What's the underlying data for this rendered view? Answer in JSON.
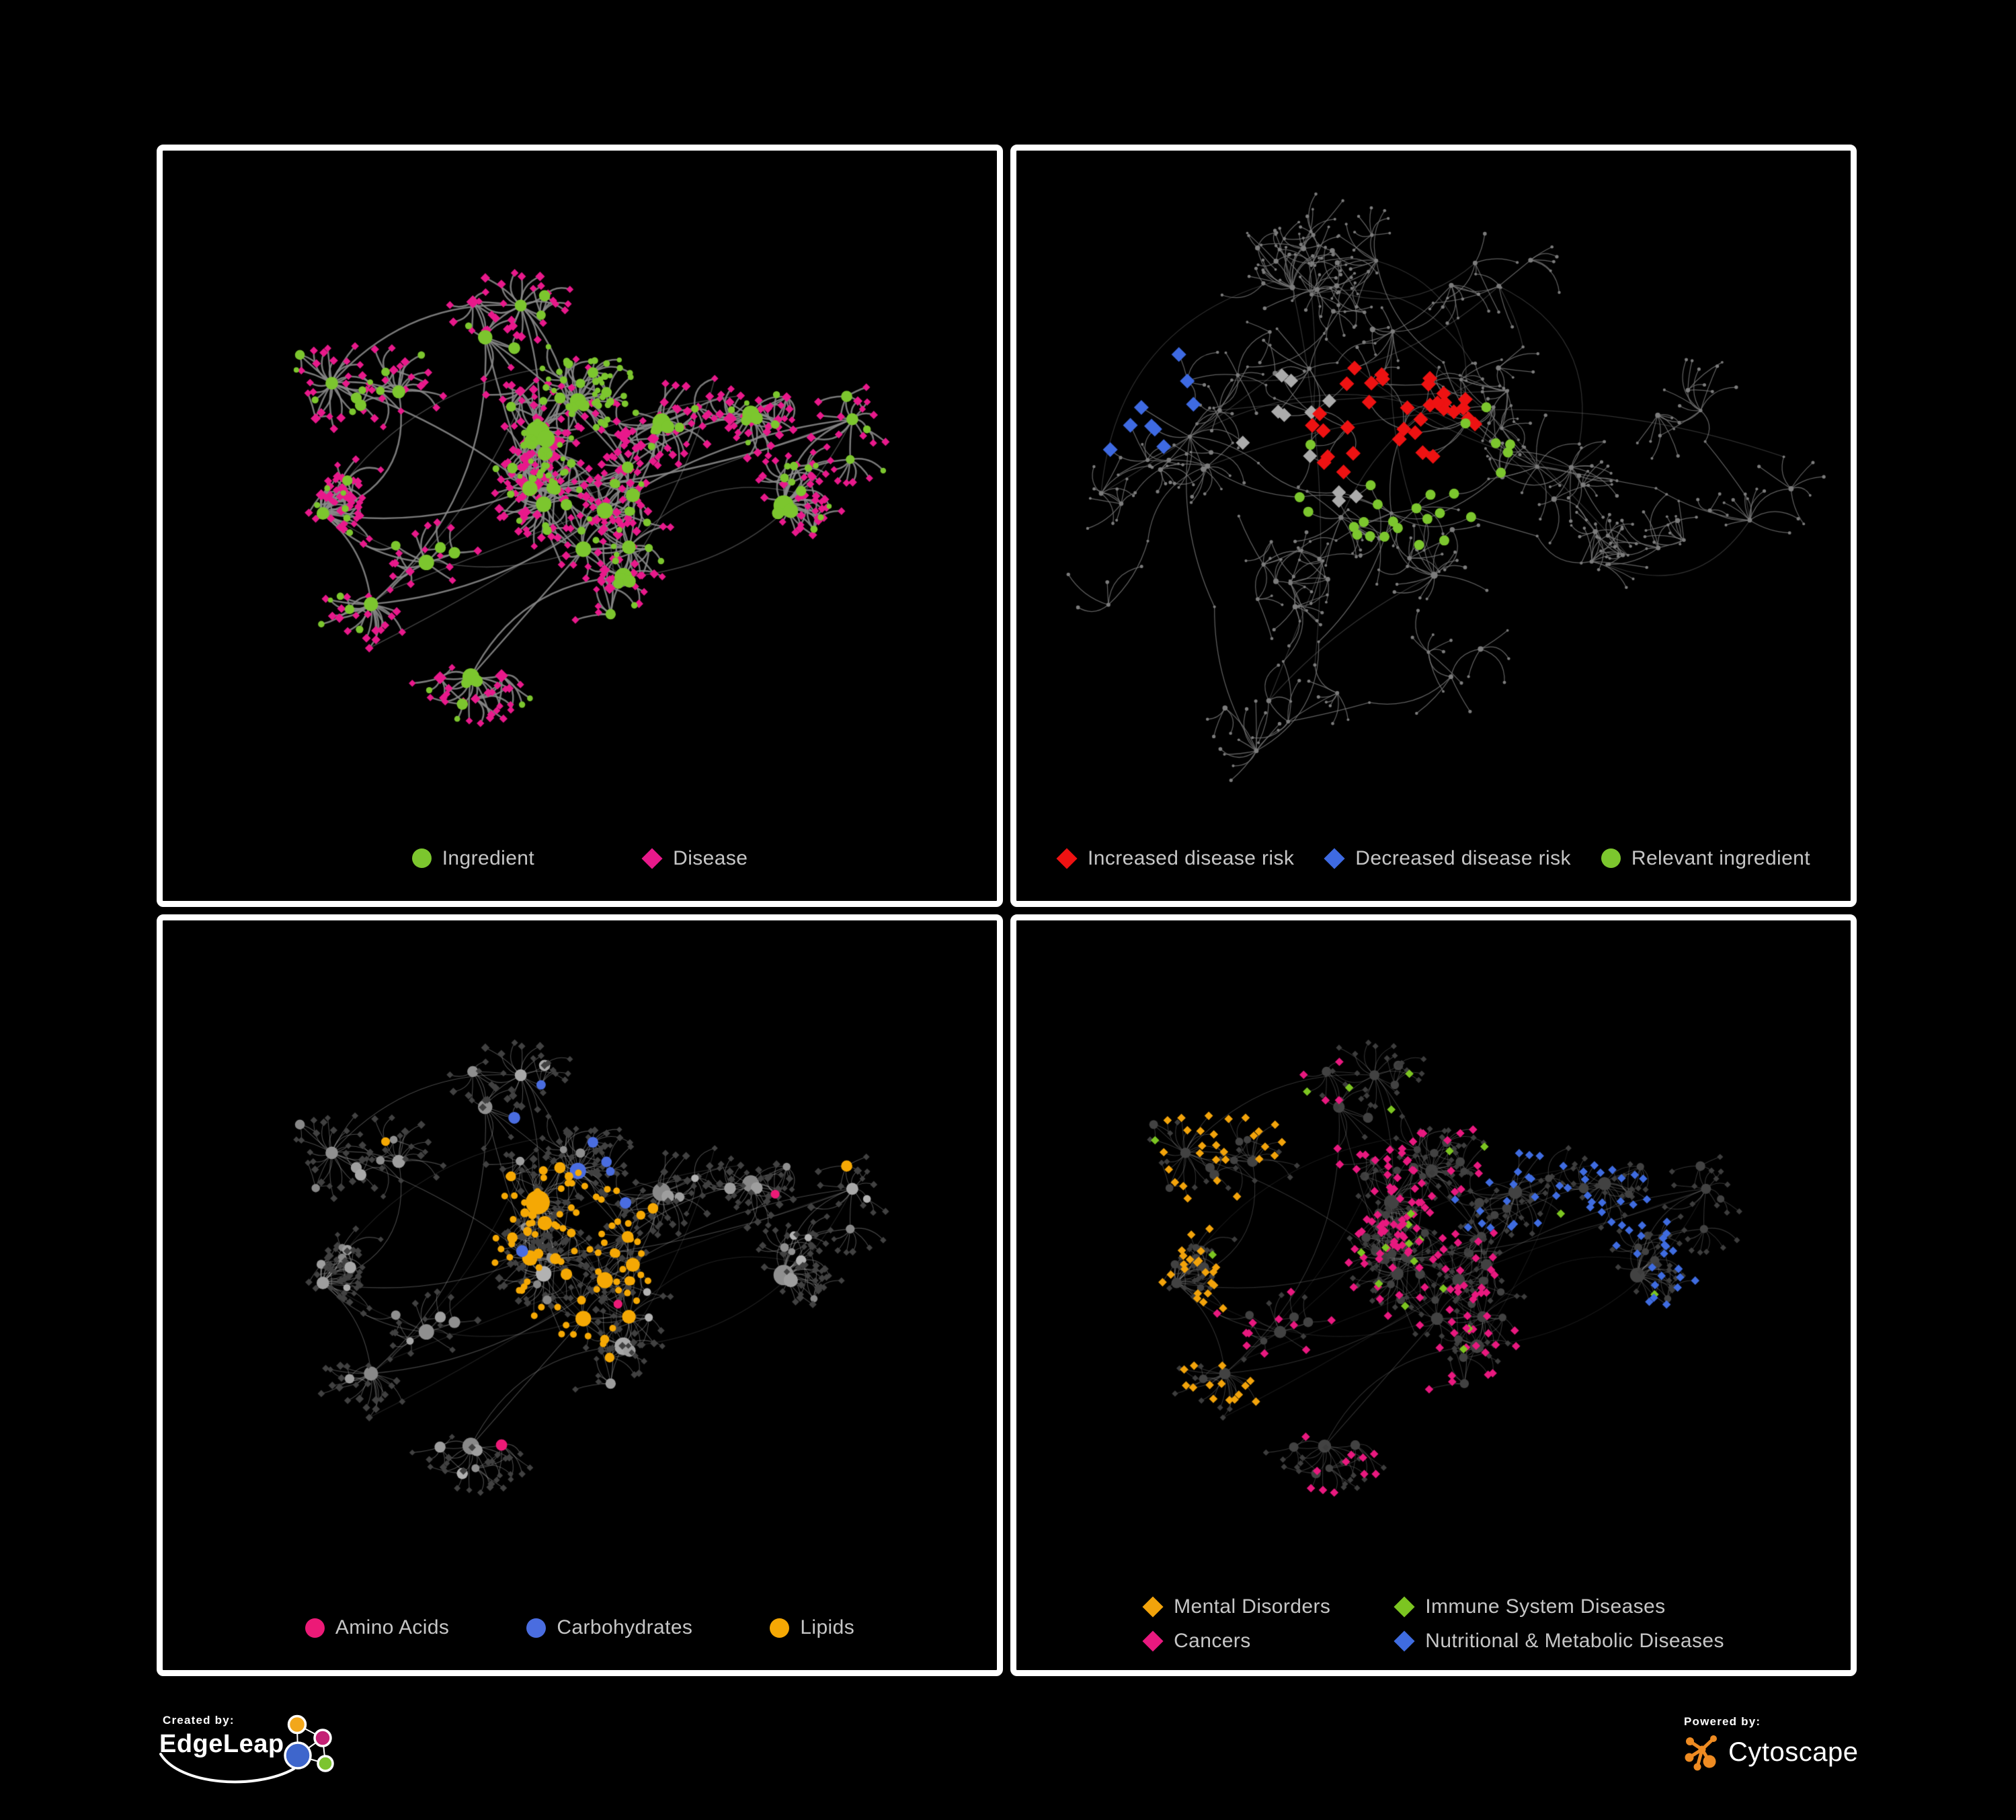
{
  "footer": {
    "created_by_label": "Created by:",
    "edgeleap_brand": "EdgeLeap",
    "powered_by_label": "Powered by:",
    "cytoscape_brand": "Cytoscape",
    "logo_colors": {
      "edgeleap_orange": "#F2A71B",
      "edgeleap_magenta": "#C42175",
      "edgeleap_blue": "#3E66CC",
      "edgeleap_green": "#7CC430",
      "edgeleap_stroke": "#FFFFFF",
      "cytoscape_orange": "#EE8B22"
    }
  },
  "palette": {
    "p1": {
      "edge": "#8A8A8A",
      "green": "#7CC62E",
      "pink": "#E8198B"
    },
    "p2": {
      "edge": "#777777",
      "node": "#7C7C7C",
      "red": "#EE1212",
      "blue": "#3E6AE2",
      "gray": "#ABABAB",
      "green": "#7CC62E"
    },
    "p3": {
      "edge": "#B5B5B5",
      "diamond": "#414141",
      "grays": [
        "#9E9E9E",
        "#8F8F8F",
        "#B2B2B2",
        "#A8A8A8",
        "#888888"
      ],
      "pink": "#EC1A77",
      "blue": "#4A6DE0",
      "orange": "#F5A804"
    },
    "p4": {
      "edge": "#A8A8A8",
      "dark": "#3D3D3D",
      "circle": "#424242",
      "orange": "#F2A30B",
      "green": "#7CC521",
      "pink": "#E8197F",
      "blue": "#3F6CE0"
    }
  },
  "panels": [
    {
      "id": "ingredient-disease",
      "legend": [
        {
          "label": "Ingredient",
          "marker": "circle",
          "color": "#7CC62E"
        },
        {
          "label": "Disease",
          "marker": "diamond",
          "color": "#E8198B"
        }
      ],
      "network": {
        "style": "ingredients",
        "palette": "p1",
        "seed": 1337,
        "hubs": 24,
        "leafMin": 6,
        "leafMax": 24,
        "subProb": 0.17,
        "spreadX": 0.4,
        "spreadY": 0.34,
        "radMin": 26,
        "radMax": 68,
        "hubMin": 8,
        "hubMax": 14,
        "subR": 6.5,
        "leafR": 4.6,
        "extraEdges": 16,
        "subdivide": false
      }
    },
    {
      "id": "disease-risk",
      "legend": [
        {
          "label": "Increased disease risk",
          "marker": "diamond",
          "color": "#EE1212"
        },
        {
          "label": "Decreased disease risk",
          "marker": "diamond",
          "color": "#3E6AE2"
        },
        {
          "label": "Relevant ingredient",
          "marker": "circle",
          "color": "#7CC62E"
        }
      ],
      "network": {
        "style": "risk",
        "palette": "p2",
        "seed": 424242,
        "hubs": 32,
        "leafMin": 3,
        "leafMax": 10,
        "subProb": 0.3,
        "spreadX": 0.46,
        "spreadY": 0.4,
        "radMin": 30,
        "radMax": 85,
        "hubMin": 2.6,
        "hubMax": 4.0,
        "subR": 3.0,
        "leafR": 2.3,
        "extraEdges": 22,
        "subdivide": true,
        "highlights": {
          "red": 33,
          "blue": 9,
          "gray": 11,
          "green": 26
        }
      }
    },
    {
      "id": "nutrient-categories",
      "legend": [
        {
          "label": "Amino Acids",
          "marker": "circle",
          "color": "#EC1A77"
        },
        {
          "label": "Carbohydrates",
          "marker": "circle",
          "color": "#4A6DE0"
        },
        {
          "label": "Lipids",
          "marker": "circle",
          "color": "#F5A804"
        }
      ],
      "network": {
        "style": "nutrients",
        "palette": "p3",
        "seed": 1337,
        "hubs": 24,
        "leafMin": 6,
        "leafMax": 24,
        "subProb": 0.17,
        "spreadX": 0.4,
        "spreadY": 0.34,
        "radMin": 26,
        "radMax": 68,
        "hubMin": 8,
        "hubMax": 14,
        "subR": 6.5,
        "leafR": 4.6,
        "extraEdges": 16,
        "subdivide": false
      }
    },
    {
      "id": "disease-categories",
      "legend_columns": 2,
      "legend": [
        {
          "label": "Mental Disorders",
          "marker": "diamond",
          "color": "#F2A30B"
        },
        {
          "label": "Immune System Diseases",
          "marker": "diamond",
          "color": "#7CC521"
        },
        {
          "label": "Cancers",
          "marker": "diamond",
          "color": "#E8197F"
        },
        {
          "label": "Nutritional & Metabolic Diseases",
          "marker": "diamond",
          "color": "#3F6CE0"
        }
      ],
      "network": {
        "style": "diseases",
        "palette": "p4",
        "seed": 1337,
        "hubs": 24,
        "leafMin": 6,
        "leafMax": 24,
        "subProb": 0.17,
        "spreadX": 0.4,
        "spreadY": 0.34,
        "radMin": 26,
        "radMax": 68,
        "hubMin": 8,
        "hubMax": 14,
        "subR": 6.5,
        "leafR": 4.6,
        "extraEdges": 16,
        "subdivide": false
      }
    }
  ]
}
